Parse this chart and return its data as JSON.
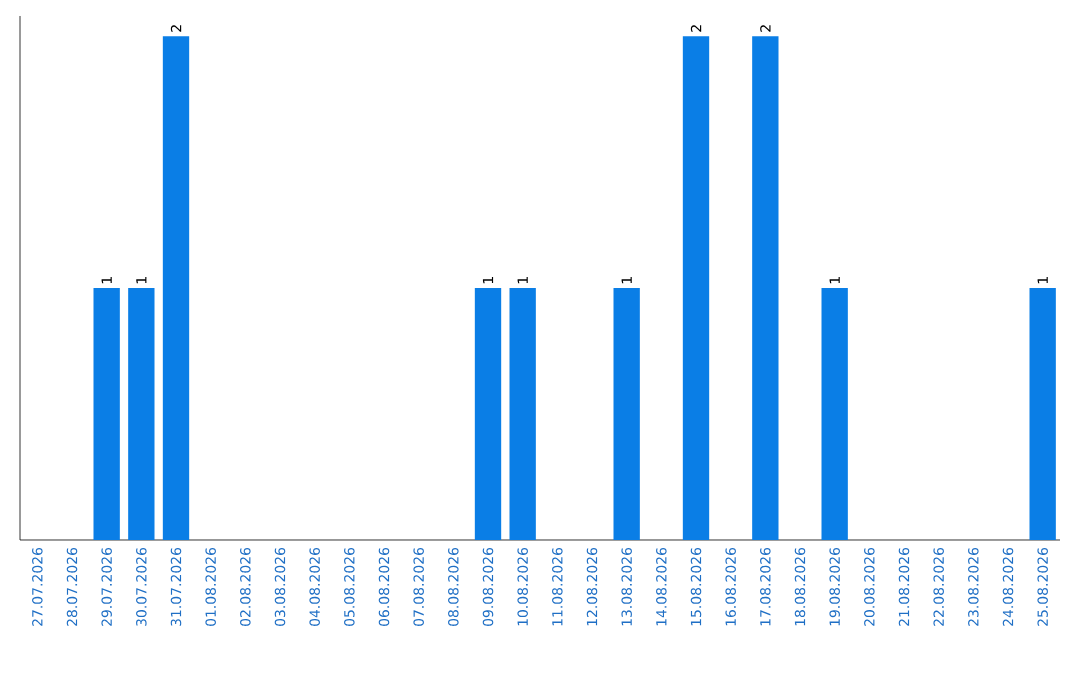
{
  "chart_data": {
    "type": "bar",
    "color": "#0a7ee6",
    "categories": [
      "27.07.2026",
      "28.07.2026",
      "29.07.2026",
      "30.07.2026",
      "31.07.2026",
      "01.08.2026",
      "02.08.2026",
      "03.08.2026",
      "04.08.2026",
      "05.08.2026",
      "06.08.2026",
      "07.08.2026",
      "08.08.2026",
      "09.08.2026",
      "10.08.2026",
      "11.08.2026",
      "12.08.2026",
      "13.08.2026",
      "14.08.2026",
      "15.08.2026",
      "16.08.2026",
      "17.08.2026",
      "18.08.2026",
      "19.08.2026",
      "20.08.2026",
      "21.08.2026",
      "22.08.2026",
      "23.08.2026",
      "24.08.2026",
      "25.08.2026"
    ],
    "values": [
      0,
      0,
      1,
      1,
      2,
      0,
      0,
      0,
      0,
      0,
      0,
      0,
      0,
      1,
      1,
      0,
      0,
      1,
      0,
      2,
      0,
      2,
      0,
      1,
      0,
      0,
      0,
      0,
      0,
      1
    ],
    "value_labels": [
      null,
      null,
      "1",
      "1",
      "2",
      null,
      null,
      null,
      null,
      null,
      null,
      null,
      null,
      "1",
      "1",
      null,
      null,
      "1",
      null,
      "2",
      null,
      "2",
      null,
      "1",
      null,
      null,
      null,
      null,
      null,
      "1"
    ],
    "tick_labels": "x"
  }
}
